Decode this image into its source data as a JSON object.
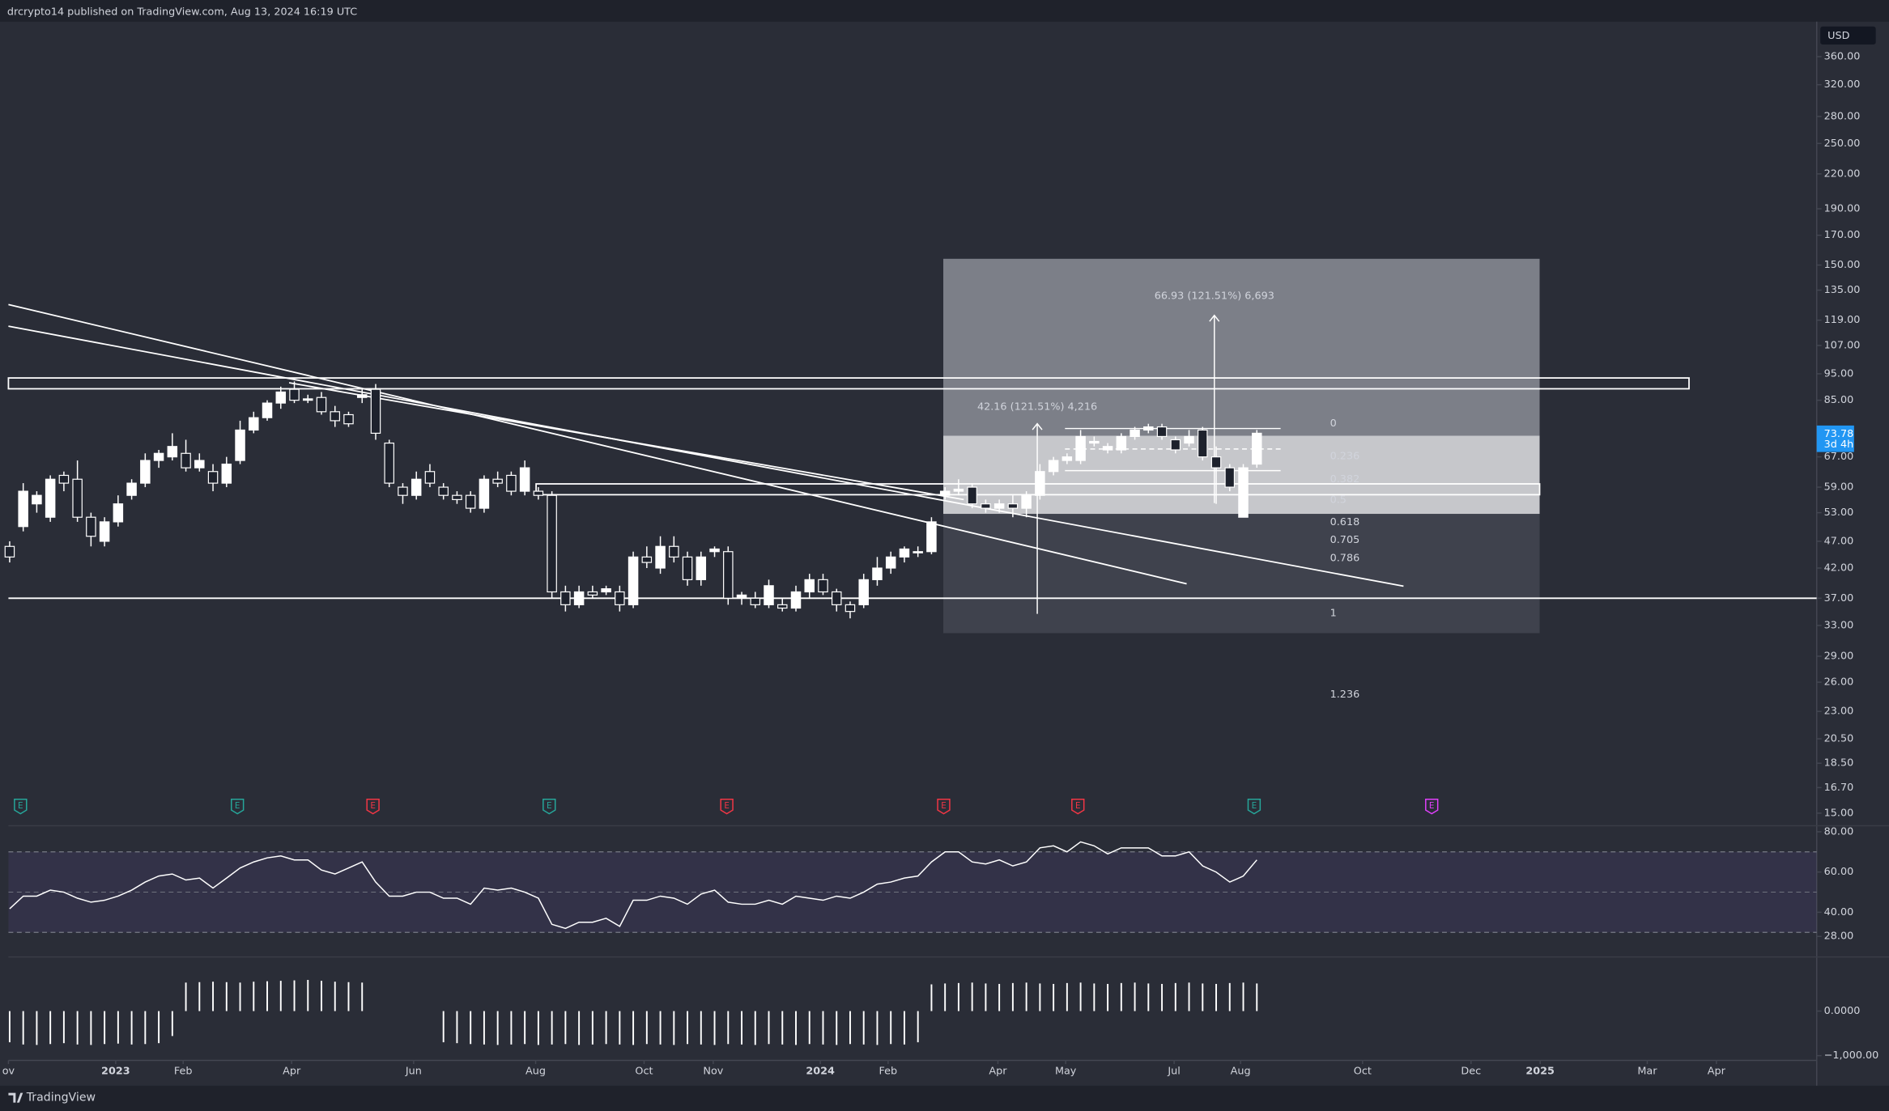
{
  "header": "drcrypto14 published on TradingView.com, Aug 13, 2024 16:19 UTC",
  "footer": "TradingView",
  "chart_data": [
    {
      "type": "candlestick",
      "currency": "USD",
      "open": [
        46,
        50,
        55,
        52,
        62,
        61,
        52,
        47,
        51,
        57,
        60,
        66,
        67,
        68,
        64,
        63,
        60,
        66,
        75,
        79,
        84,
        89,
        85,
        86,
        81,
        80,
        86,
        89,
        71,
        59,
        57,
        63,
        59,
        57,
        57,
        54,
        61,
        62,
        58,
        58,
        57,
        38,
        36,
        38,
        38,
        38,
        36,
        44,
        42,
        46,
        44,
        40,
        45,
        45,
        37,
        37,
        36,
        36,
        35.5,
        38,
        40,
        38,
        36,
        36,
        40,
        42,
        44,
        45,
        45,
        57,
        58,
        59,
        55,
        54,
        55,
        54,
        57,
        63,
        66,
        66,
        71,
        69,
        69,
        73,
        75,
        76,
        72,
        71,
        75,
        67,
        64,
        52,
        65
      ],
      "high": [
        47,
        60,
        58,
        62,
        63,
        66,
        53,
        52,
        57,
        61,
        68,
        69,
        74,
        72,
        68,
        65,
        67,
        78,
        81,
        85,
        90,
        92,
        87,
        88,
        83,
        81,
        89,
        91,
        72,
        60,
        63,
        65,
        60,
        58,
        58,
        62,
        63,
        63,
        66,
        59,
        58,
        39,
        39,
        39,
        39,
        39,
        45,
        46,
        48,
        48,
        45,
        45,
        46,
        46,
        38,
        38,
        40,
        37,
        39,
        41,
        41,
        38.5,
        36.5,
        41,
        44,
        45,
        46,
        46,
        52,
        59,
        61,
        60,
        56,
        56,
        57,
        58,
        65,
        67,
        68,
        75,
        73,
        71,
        74,
        76,
        77,
        77,
        73,
        75,
        76,
        70,
        65,
        65,
        75
      ],
      "low": [
        43,
        49,
        53,
        51,
        58,
        51,
        46,
        46,
        50,
        56,
        59,
        64,
        66,
        63,
        63,
        58,
        59,
        65,
        74,
        78,
        82,
        84,
        84,
        80,
        76,
        76,
        84,
        72,
        59,
        55,
        56,
        59,
        56,
        55,
        53,
        53,
        59,
        57,
        57,
        56,
        37,
        35,
        35.5,
        37,
        37.5,
        35,
        35.5,
        42,
        41,
        43,
        39,
        39,
        44,
        36,
        36,
        35.5,
        35.5,
        35,
        35,
        37,
        37.5,
        35,
        34,
        35.5,
        39,
        41,
        43,
        44,
        44.5,
        56,
        57,
        54,
        53,
        53,
        52,
        52,
        56,
        62,
        65,
        65,
        70,
        68,
        68,
        72,
        74,
        72,
        68,
        70,
        66,
        55,
        58,
        52,
        64
      ],
      "close": [
        44,
        58,
        57,
        61,
        60,
        52,
        48,
        51,
        55,
        60,
        66,
        68,
        70,
        64,
        66,
        60,
        65,
        75,
        79,
        84,
        88,
        85,
        85.5,
        81,
        78,
        77,
        87,
        74,
        60,
        57,
        61,
        60,
        57,
        56,
        54,
        61,
        60,
        58,
        64,
        57,
        38,
        36,
        38,
        37.5,
        38.5,
        36,
        44,
        43,
        46,
        44,
        40,
        44,
        45.5,
        37,
        37.5,
        36,
        39,
        35.5,
        38,
        40,
        38,
        36,
        35,
        40,
        42,
        44,
        45.5,
        45,
        51,
        58,
        58.5,
        55,
        54,
        55,
        54,
        57,
        63,
        66,
        67,
        73,
        71.5,
        70,
        73,
        75,
        76,
        73,
        69,
        73,
        67,
        64,
        59,
        64,
        74
      ],
      "up_color": "#ffffff",
      "down_color": "#1e222d",
      "log_scale": true,
      "ylim": [
        14.3,
        417
      ],
      "yticks": [
        {
          "value": 360,
          "label": "360.00"
        },
        {
          "value": 320,
          "label": "320.00"
        },
        {
          "value": 280,
          "label": "280.00"
        },
        {
          "value": 250,
          "label": "250.00"
        },
        {
          "value": 220,
          "label": "220.00"
        },
        {
          "value": 190,
          "label": "190.00"
        },
        {
          "value": 170,
          "label": "170.00"
        },
        {
          "value": 150,
          "label": "150.00"
        },
        {
          "value": 135,
          "label": "135.00"
        },
        {
          "value": 119,
          "label": "119.00"
        },
        {
          "value": 107,
          "label": "107.00"
        },
        {
          "value": 95,
          "label": "95.00"
        },
        {
          "value": 85,
          "label": "85.00"
        },
        {
          "value": 67,
          "label": "67.00"
        },
        {
          "value": 59,
          "label": "59.00"
        },
        {
          "value": 53,
          "label": "53.00"
        },
        {
          "value": 47,
          "label": "47.00"
        },
        {
          "value": 42,
          "label": "42.00"
        },
        {
          "value": 37,
          "label": "37.00"
        },
        {
          "value": 33,
          "label": "33.00"
        },
        {
          "value": 29,
          "label": "29.00"
        },
        {
          "value": 26,
          "label": "26.00"
        },
        {
          "value": 23,
          "label": "23.00"
        },
        {
          "value": 20.5,
          "label": "20.50"
        },
        {
          "value": 18.5,
          "label": "18.50"
        },
        {
          "value": 16.7,
          "label": "16.70"
        },
        {
          "value": 15,
          "label": "15.00"
        }
      ],
      "xlim": [
        -0.09,
        133.3
      ],
      "xticks": [
        {
          "value": -0.09,
          "label": "ov"
        },
        {
          "value": 7.82,
          "label": "2023"
        },
        {
          "value": 12.8,
          "label": "Feb"
        },
        {
          "value": 20.8,
          "label": "Apr"
        },
        {
          "value": 29.8,
          "label": "Jun"
        },
        {
          "value": 38.8,
          "label": "Aug"
        },
        {
          "value": 46.8,
          "label": "Oct"
        },
        {
          "value": 51.9,
          "label": "Nov"
        },
        {
          "value": 59.8,
          "label": "2024"
        },
        {
          "value": 64.8,
          "label": "Feb"
        },
        {
          "value": 72.9,
          "label": "Apr"
        },
        {
          "value": 77.9,
          "label": "May"
        },
        {
          "value": 85.9,
          "label": "Jul"
        },
        {
          "value": 90.8,
          "label": "Aug"
        },
        {
          "value": 99.8,
          "label": "Oct"
        },
        {
          "value": 107.8,
          "label": "Dec"
        },
        {
          "value": 112.9,
          "label": "2025"
        },
        {
          "value": 120.8,
          "label": "Mar"
        },
        {
          "value": 125.9,
          "label": "Apr"
        }
      ],
      "last_price": 73.78,
      "countdown": "3d 4h",
      "last_color": "#2196f3",
      "fib": {
        "high": 77.1,
        "low": 34.7,
        "levels": [
          0,
          0.236,
          0.382,
          0.5,
          0.618,
          0.705,
          0.786,
          1,
          1.236
        ]
      },
      "annotations": [
        "66.93 (121.51%) 6,693",
        "42.16 (121.51%) 4,216"
      ],
      "events": {
        "label": "E",
        "x": [
          0.8,
          16.8,
          26.8,
          39.8,
          52.9,
          68.9,
          78.8,
          91.8,
          104.9
        ],
        "colors": [
          "#26a69a",
          "#26a69a",
          "#f23645",
          "#26a69a",
          "#f23645",
          "#f23645",
          "#f23645",
          "#26a69a",
          "#e040fb"
        ]
      }
    },
    {
      "type": "line",
      "values": [
        41.7,
        48,
        48,
        51,
        50,
        47,
        45,
        46,
        48,
        51,
        55,
        58,
        59,
        56,
        57,
        52,
        57,
        62,
        65,
        67,
        68,
        66,
        66,
        61,
        59,
        62,
        65,
        55,
        48,
        48,
        50,
        50,
        47,
        47,
        44,
        52,
        51,
        52,
        50,
        47,
        34,
        32,
        35,
        35,
        37,
        33,
        46,
        46,
        48,
        47,
        44,
        49,
        51,
        45,
        44,
        44,
        46,
        44,
        48,
        47,
        46,
        48,
        47,
        50,
        54,
        55,
        57,
        58,
        65,
        70,
        70,
        65,
        64,
        66,
        63,
        65,
        72,
        73,
        70,
        75,
        73,
        69,
        72,
        72,
        72,
        68,
        68,
        70,
        63,
        60,
        55,
        58,
        66
      ],
      "color": "#ffffff",
      "band": [
        30,
        70
      ],
      "band_color": "#7e57c2",
      "ylim": [
        17.8,
        83
      ],
      "yticks": [
        {
          "value": 80,
          "label": "80.00"
        },
        {
          "value": 60,
          "label": "60.00"
        },
        {
          "value": 40,
          "label": "40.00"
        },
        {
          "value": 28,
          "label": "28.00"
        }
      ]
    },
    {
      "type": "bar",
      "values": [
        -700,
        -750,
        -760,
        -740,
        -720,
        -750,
        -760,
        -740,
        -730,
        -750,
        -740,
        -720,
        -560,
        640,
        650,
        660,
        650,
        640,
        660,
        670,
        680,
        690,
        700,
        680,
        660,
        650,
        640,
        0,
        0,
        0,
        0,
        0,
        -700,
        -720,
        -740,
        -750,
        -760,
        -750,
        -740,
        -760,
        -750,
        -740,
        -760,
        -750,
        -740,
        -750,
        -760,
        -740,
        -750,
        -760,
        -740,
        -750,
        -760,
        -740,
        -750,
        -760,
        -740,
        -750,
        -760,
        -740,
        -750,
        -760,
        -740,
        -750,
        -760,
        -740,
        -750,
        -700,
        600,
        620,
        630,
        640,
        620,
        610,
        630,
        640,
        620,
        610,
        630,
        640,
        620,
        610,
        630,
        640,
        620,
        610,
        630,
        640,
        620,
        610,
        630,
        640,
        620
      ],
      "color": "#ffffff",
      "ylim": [
        -1135,
        1216
      ],
      "yticks": [
        {
          "value": 0,
          "label": "0.0000"
        },
        {
          "value": -1000,
          "label": "−1,000.00"
        }
      ]
    }
  ]
}
